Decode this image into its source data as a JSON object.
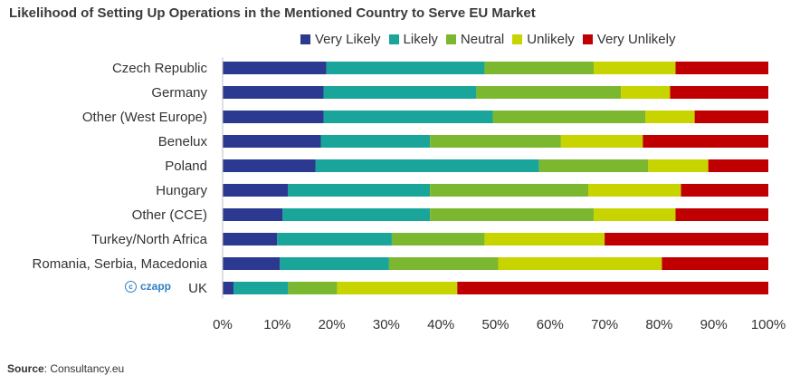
{
  "chart_data": {
    "type": "bar",
    "orientation": "horizontal",
    "stacked": true,
    "title": "Likelihood of Setting Up Operations in the Mentioned Country to Serve EU Market",
    "categories": [
      "Czech Republic",
      "Germany",
      "Other (West Europe)",
      "Benelux",
      "Poland",
      "Hungary",
      "Other (CCE)",
      "Turkey/North Africa",
      "Romania, Serbia, Macedonia",
      "UK"
    ],
    "series": [
      {
        "name": "Very Likely",
        "color": "#2b3990",
        "values": [
          19,
          18.5,
          18.5,
          18,
          17,
          12,
          11,
          10,
          10.5,
          2
        ]
      },
      {
        "name": "Likely",
        "color": "#1aa59a",
        "values": [
          29,
          28,
          31,
          20,
          41,
          26,
          27,
          21,
          20,
          10
        ]
      },
      {
        "name": "Neutral",
        "color": "#7cb82f",
        "values": [
          20,
          26.5,
          28,
          24,
          20,
          29,
          30,
          17,
          20,
          9
        ]
      },
      {
        "name": "Unlikely",
        "color": "#c8d400",
        "values": [
          15,
          9,
          9,
          15,
          11,
          17,
          15,
          22,
          30,
          22
        ]
      },
      {
        "name": "Very Unlikely",
        "color": "#c00000",
        "values": [
          17,
          18,
          13.5,
          23,
          11,
          16,
          17,
          30,
          19.5,
          57
        ]
      }
    ],
    "x_ticks": [
      "0%",
      "10%",
      "20%",
      "30%",
      "40%",
      "50%",
      "60%",
      "70%",
      "80%",
      "90%",
      "100%"
    ],
    "xlim": [
      0,
      100
    ],
    "grid": false,
    "legend_position": "top-right"
  },
  "source": {
    "label": "Source",
    "text": ": Consultancy.eu"
  },
  "watermark": {
    "text": "czapp",
    "symbol": "c"
  }
}
